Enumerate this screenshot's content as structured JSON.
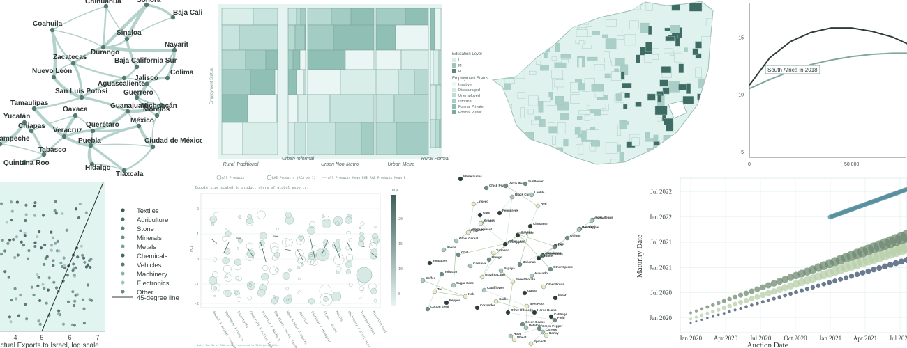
{
  "mexico": {
    "states": [
      {
        "name": "Chihuahua"
      },
      {
        "name": "Sonora"
      },
      {
        "name": "Baja California"
      },
      {
        "name": "Coahuila"
      },
      {
        "name": "Sinaloa"
      },
      {
        "name": "Durango"
      },
      {
        "name": "Nayarit"
      },
      {
        "name": "Zacatecas"
      },
      {
        "name": "Baja California Sur"
      },
      {
        "name": "Nuevo León"
      },
      {
        "name": "Aguascalientes"
      },
      {
        "name": "Colima"
      },
      {
        "name": "Jalisco"
      },
      {
        "name": "San Luis Potosí"
      },
      {
        "name": "Guerrero"
      },
      {
        "name": "Tamaulipas"
      },
      {
        "name": "Michoacán"
      },
      {
        "name": "Oaxaca"
      },
      {
        "name": "Guanajuato"
      },
      {
        "name": "Morelos"
      },
      {
        "name": "Yucatán"
      },
      {
        "name": "Chiapas"
      },
      {
        "name": "Querétaro"
      },
      {
        "name": "México"
      },
      {
        "name": "Veracruz"
      },
      {
        "name": "Campeche"
      },
      {
        "name": "Puebla"
      },
      {
        "name": "Ciudad de México"
      },
      {
        "name": "Tabasco"
      },
      {
        "name": "Quintana Roo"
      },
      {
        "name": "Hidalgo"
      },
      {
        "name": "Tlaxcala"
      }
    ]
  },
  "treemap": {
    "y_label": "Employment Status",
    "x_categories": [
      "Rural Traditional",
      "Urban Informal",
      "Urban Non-Metro",
      "Urban Metro",
      "Rural Formal"
    ],
    "legend_education_title": "Education Level",
    "legend_education": [
      {
        "label": "L",
        "color": "#d8efe9"
      },
      {
        "label": "M",
        "color": "#9fc5bb"
      },
      {
        "label": "H",
        "color": "#5d857c"
      }
    ],
    "legend_employment_title": "Employment Status",
    "legend_employment": [
      {
        "label": "Inactive",
        "color": "#eaf7f4"
      },
      {
        "label": "Discouraged",
        "color": "#d3ebe5"
      },
      {
        "label": "Unemployed",
        "color": "#bcdcd5"
      },
      {
        "label": "Informal",
        "color": "#a6cec6"
      },
      {
        "label": "Formal Private",
        "color": "#8fbdb4"
      },
      {
        "label": "Formal Public",
        "color": "#79aba1"
      }
    ]
  },
  "map": {
    "colors": {
      "light": "#e0f2ee",
      "mid": "#a9cfc6",
      "dark": "#3e6b63"
    }
  },
  "line_chart": {
    "chart_data": {
      "type": "line",
      "x": [
        0,
        10000,
        20000,
        30000,
        40000,
        50000,
        60000,
        70000,
        80000,
        90000
      ],
      "series": [
        {
          "name": "",
          "color": "#2f3d3a",
          "values": [
            10.8,
            13.2,
            14.6,
            15.4,
            15.8,
            15.8,
            15.5,
            15.0,
            14.2,
            13.1
          ]
        },
        {
          "name": "",
          "color": "#7fa8a0",
          "values": [
            10.5,
            11.3,
            12.0,
            12.6,
            13.0,
            13.3,
            13.5,
            13.6,
            13.6,
            13.4
          ]
        }
      ],
      "annotation": "South Africa in 2018",
      "y_ticks": [
        "5",
        "10",
        "15"
      ],
      "x_ticks": [
        "0",
        "50,000"
      ],
      "xlim": [
        0,
        90000
      ],
      "ylim": [
        4.5,
        18
      ]
    }
  },
  "scatter": {
    "xlabel": "Actual Exports to Israel, log scale",
    "x_ticks": [
      "4",
      "5",
      "6",
      "7"
    ],
    "legend": [
      {
        "label": "Textiles",
        "color": "#3e5a55"
      },
      {
        "label": "Agriculture",
        "color": "#4f6f68"
      },
      {
        "label": "Stone",
        "color": "#5f817a"
      },
      {
        "label": "Minerals",
        "color": "#6e928b"
      },
      {
        "label": "Metals",
        "color": "#7da29b"
      },
      {
        "label": "Chemicals",
        "color": "#4a6862"
      },
      {
        "label": "Vehicles",
        "color": "#5a7a73"
      },
      {
        "label": "Machinery",
        "color": "#8fb3ac"
      },
      {
        "label": "Electronics",
        "color": "#a7c7c1"
      },
      {
        "label": "Other",
        "color": "#6a8c85"
      }
    ],
    "line_label": "45-degree line"
  },
  "bubble": {
    "legend": [
      {
        "label": "All Products"
      },
      {
        "label": "RAE Products (RCA >= 1)"
      },
      {
        "label": "All Products Mean PCI"
      },
      {
        "label": "RAE Products Mean PCI"
      }
    ],
    "caption": "Bubble size scaled to product share of global exports.",
    "y_label": "PCI",
    "y_ticks": [
      "2",
      "1",
      "0",
      "-1",
      "-2"
    ],
    "colorbar_title": "RCA",
    "colorbar_ticks": [
      "20",
      "15",
      "10",
      "5"
    ],
    "categories": [
      "Animal & Animal Products",
      "Vegetable Products",
      "Foodstuffs",
      "Chemicals & Allied Industries",
      "Plastics / Rubbers",
      "Raw Hides, Skins, Leather",
      "Wood & Wood Products",
      "Textiles",
      "Footwear / Headgear",
      "Stone / Glass",
      "Metals",
      "Machinery / Electrical",
      "Transportation",
      "Miscellaneous"
    ],
    "footnote": "Note: Top 3% of RCA values truncated to 95th percentile."
  },
  "network": {
    "nodes": [
      {
        "name": "White Lumis"
      },
      {
        "name": "Chick Peas"
      },
      {
        "name": "Black Cumin"
      },
      {
        "name": "Red"
      },
      {
        "name": "Oats"
      },
      {
        "name": "Vetch Beans"
      },
      {
        "name": "Lentils"
      },
      {
        "name": "Linseed"
      },
      {
        "name": "Fenugreek"
      },
      {
        "name": "Sunflower"
      },
      {
        "name": "Ginger"
      },
      {
        "name": "Grapes"
      },
      {
        "name": "Rice"
      },
      {
        "name": "Soya Beans"
      },
      {
        "name": "White Haricot"
      },
      {
        "name": "Other Land"
      },
      {
        "name": "Mandarins"
      },
      {
        "name": "Zucchini"
      },
      {
        "name": "Other Cereal"
      },
      {
        "name": "Turmeric"
      },
      {
        "name": "Cinnamon"
      },
      {
        "name": "Onions"
      },
      {
        "name": "Beans"
      },
      {
        "name": "Sesame"
      },
      {
        "name": "Sorghum"
      },
      {
        "name": "Teff"
      },
      {
        "name": "Coffee"
      },
      {
        "name": "Eggplant"
      },
      {
        "name": "Pineapples"
      },
      {
        "name": "Groundnuts"
      },
      {
        "name": "Red Pepper"
      },
      {
        "name": "Grazing Land"
      },
      {
        "name": "Guava"
      },
      {
        "name": "Cotton Seed"
      },
      {
        "name": "Cassava"
      },
      {
        "name": "Sweet Potato"
      },
      {
        "name": "Millet"
      },
      {
        "name": "Chat"
      },
      {
        "name": "Papaya"
      },
      {
        "name": "Other Fruits"
      },
      {
        "name": "Pepper"
      },
      {
        "name": "Mango"
      },
      {
        "name": "Avocado"
      },
      {
        "name": "Tea"
      },
      {
        "name": "Coriander"
      },
      {
        "name": "Bananas"
      },
      {
        "name": "Coffee"
      },
      {
        "name": "Kale"
      },
      {
        "name": "Other Oilseeds"
      },
      {
        "name": "Other Spices"
      },
      {
        "name": "Sugar Cane"
      },
      {
        "name": "Garlic"
      },
      {
        "name": "Lettuce"
      },
      {
        "name": "Tobacco"
      },
      {
        "name": "Cauliflower"
      },
      {
        "name": "Beet Root"
      },
      {
        "name": "Tomatoes"
      },
      {
        "name": "Green Pepper"
      },
      {
        "name": "Hops"
      },
      {
        "name": "Spinach"
      },
      {
        "name": "Cabbage"
      },
      {
        "name": "Green Beans"
      },
      {
        "name": "Carrots"
      },
      {
        "name": "Wheat"
      },
      {
        "name": "Horse Beans"
      },
      {
        "name": "Field"
      },
      {
        "name": "Potatoes"
      },
      {
        "name": "Barley"
      }
    ]
  },
  "auction": {
    "chart_data": {
      "type": "scatter",
      "xlabel": "Auction Date",
      "ylabel": "Maturity Date",
      "x_ticks": [
        "Jan 2020",
        "Apr 2020",
        "Jul 2020",
        "Oct 2020",
        "Jan 2021",
        "Apr 2021",
        "Jul 2021"
      ],
      "y_ticks": [
        "Jan 2020",
        "Jul 2020",
        "Jan 2021",
        "Jul 2021",
        "Jan 2022",
        "Jul 2022"
      ],
      "series": [
        {
          "name": "",
          "color": "#3a4f6a",
          "x_start": 0.0,
          "x_end": 1.55,
          "y_start": 0.0,
          "y_end": 1.25
        },
        {
          "name": "",
          "color": "#b7cfa8",
          "x_start": 0.0,
          "x_end": 1.55,
          "y_start": 0.08,
          "y_end": 1.5
        },
        {
          "name": "",
          "color": "#6f8a72",
          "x_start": 0.0,
          "x_end": 1.55,
          "y_start": 0.2,
          "y_end": 1.72
        },
        {
          "name": "",
          "color": "#4f8a99",
          "x_start": 1.0,
          "x_end": 1.55,
          "y_start": 2.1,
          "y_end": 2.65
        }
      ]
    }
  }
}
